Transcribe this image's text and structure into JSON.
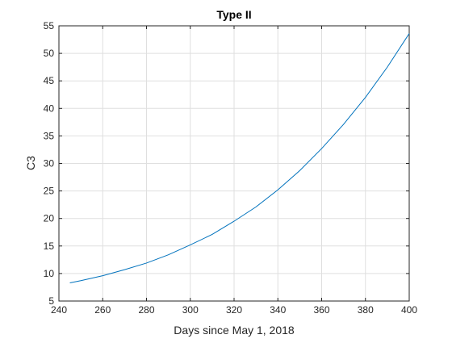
{
  "chart_data": {
    "type": "line",
    "title": "Type II",
    "xlabel": "Days since May 1, 2018",
    "ylabel": "C3",
    "xlim": [
      240,
      400
    ],
    "ylim": [
      5,
      55
    ],
    "xticks": [
      240,
      260,
      280,
      300,
      320,
      340,
      360,
      380,
      400
    ],
    "yticks": [
      5,
      10,
      15,
      20,
      25,
      30,
      35,
      40,
      45,
      50,
      55
    ],
    "grid": true,
    "series": [
      {
        "color": "#0072BD",
        "x": [
          245,
          250,
          260,
          270,
          280,
          290,
          300,
          310,
          320,
          330,
          340,
          350,
          360,
          370,
          380,
          390,
          400
        ],
        "y": [
          8.3,
          8.7,
          9.6,
          10.7,
          11.9,
          13.4,
          15.2,
          17.1,
          19.5,
          22.1,
          25.2,
          28.7,
          32.7,
          37.1,
          42.0,
          47.5,
          53.6
        ]
      }
    ]
  }
}
